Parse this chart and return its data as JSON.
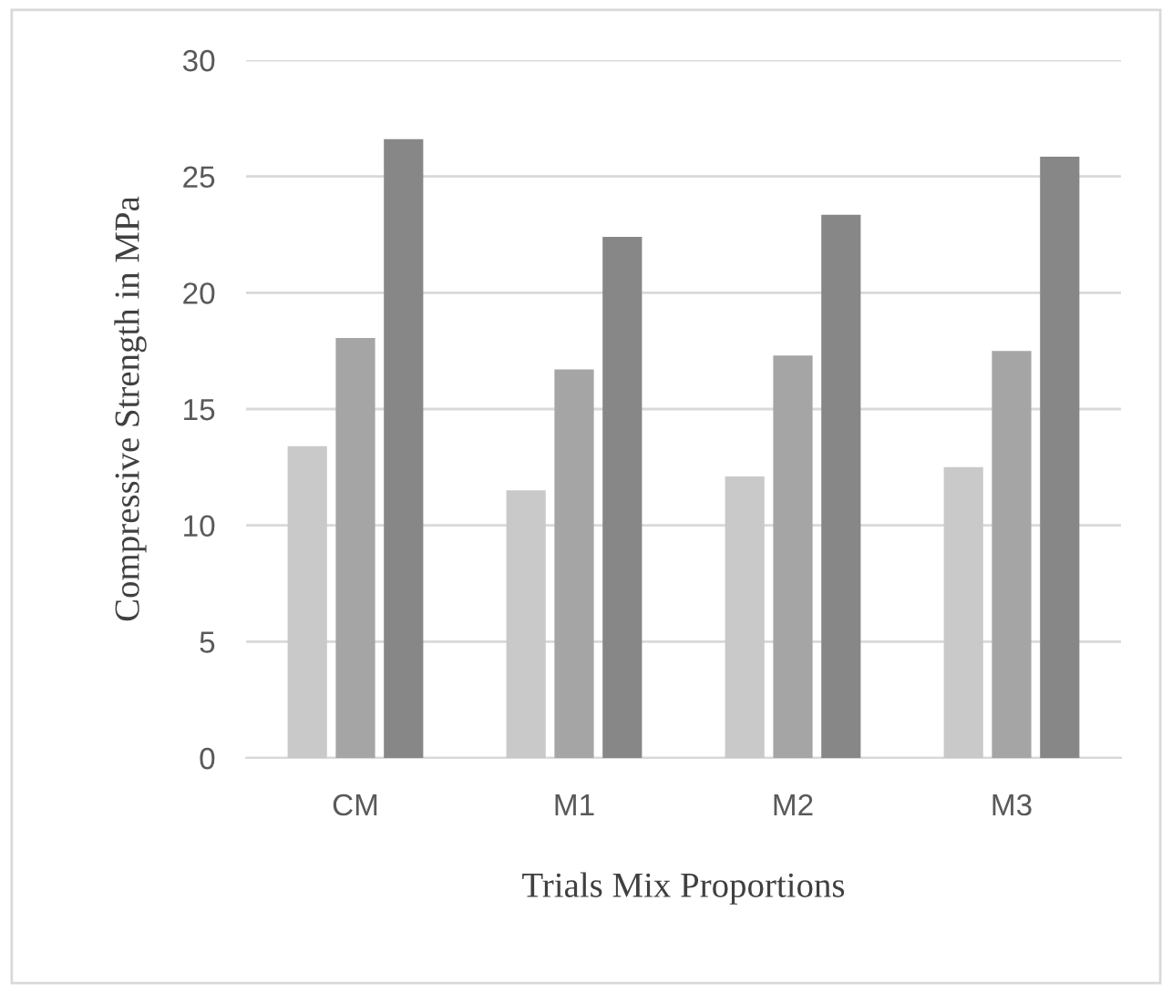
{
  "chart_data": {
    "type": "bar",
    "xlabel": "Trials Mix Proportions",
    "ylabel": "Compressive Strength in MPa",
    "categories": [
      "CM",
      "M1",
      "M2",
      "M3"
    ],
    "series": [
      {
        "color": "#c9c9c9",
        "values": [
          13.4,
          11.5,
          12.1,
          12.5
        ]
      },
      {
        "color": "#a5a5a5",
        "values": [
          18.05,
          16.7,
          17.3,
          17.5
        ]
      },
      {
        "color": "#878787",
        "values": [
          26.6,
          22.4,
          23.35,
          25.85
        ]
      }
    ],
    "ylim": [
      0,
      30
    ],
    "yticks": [
      0,
      5,
      10,
      15,
      20,
      25,
      30
    ],
    "grid": "y"
  }
}
